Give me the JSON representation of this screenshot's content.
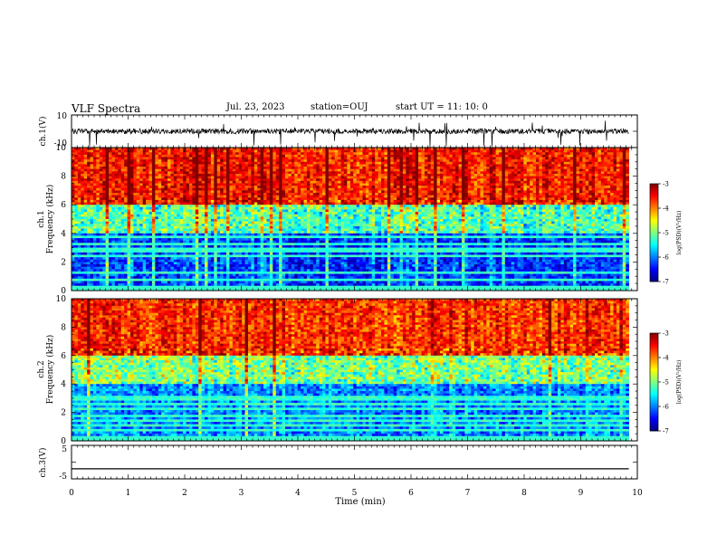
{
  "header": {
    "title": "VLF Spectra",
    "date": "Jul. 23, 2023",
    "station": "station=OUJ",
    "start": "start UT = 11: 10: 0"
  },
  "chart_data": [
    {
      "type": "line",
      "panel": "ch.1 waveform",
      "ylabel": "ch.1(V)",
      "ylim": [
        -10,
        10
      ],
      "yticks": [
        "10",
        "-10"
      ],
      "xlim": [
        0,
        10
      ],
      "series": [
        {
          "values": [
            0
          ]
        }
      ],
      "color": "#000000"
    },
    {
      "type": "heatmap",
      "panel": "ch.1 spectrogram",
      "ylabel": "ch.1 Frequency (kHz)",
      "ylim": [
        0,
        10
      ],
      "yticks": [
        "0",
        "2",
        "4",
        "6",
        "8",
        "10"
      ],
      "xlim": [
        0,
        9.85
      ],
      "colorbar": {
        "label": "log(PSD)(V²/Hz)",
        "range": [
          -7,
          -3
        ],
        "ticks": [
          "-3",
          "-4",
          "-5",
          "-6",
          "-7"
        ]
      },
      "description_of_values": {
        "below_4kHz": -6.3,
        "4_to_6kHz": -5.2,
        "above_6kHz": -3.6
      }
    },
    {
      "type": "heatmap",
      "panel": "ch.2 spectrogram",
      "ylabel": "ch.2 Frequency (kHz)",
      "ylim": [
        0,
        10
      ],
      "yticks": [
        "0",
        "2",
        "4",
        "6",
        "8",
        "10"
      ],
      "xlim": [
        0,
        9.85
      ],
      "colorbar": {
        "label": "log(PSD)(V²/Hz)",
        "range": [
          -7,
          -3
        ],
        "ticks": [
          "-3",
          "-4",
          "-5",
          "-6",
          "-7"
        ]
      },
      "description_of_values": {
        "below_4kHz": -6.0,
        "4_to_6kHz": -5.0,
        "above_6kHz": -3.7
      }
    },
    {
      "type": "line",
      "panel": "ch.3 waveform",
      "ylabel": "ch.3(V)",
      "ylim": [
        -5,
        5
      ],
      "yticks": [
        "5",
        "-5"
      ],
      "xlim": [
        0,
        10
      ],
      "series": [
        {
          "x": [
            0,
            9.85
          ],
          "values": [
            -2,
            -2
          ]
        }
      ],
      "color": "#000000"
    }
  ],
  "xaxis": {
    "label": "Time (min)",
    "ticks": [
      "0",
      "1",
      "2",
      "3",
      "4",
      "5",
      "6",
      "7",
      "8",
      "9",
      "10"
    ],
    "range": [
      0,
      10
    ]
  }
}
